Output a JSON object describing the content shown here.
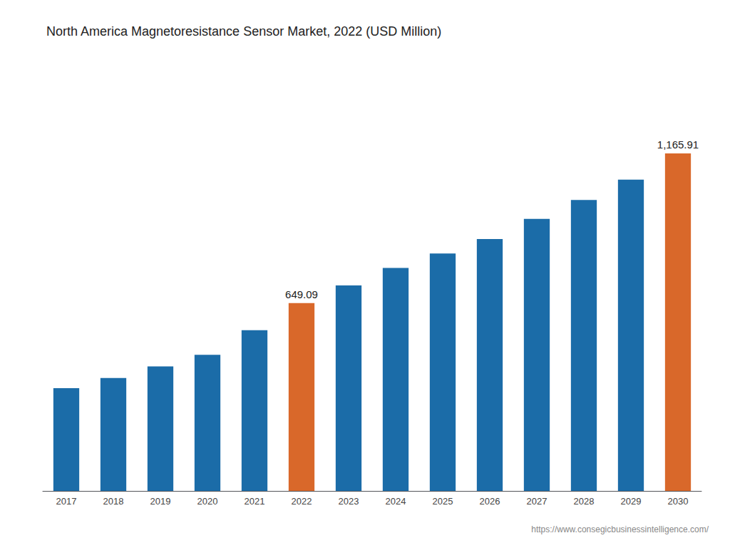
{
  "chart_data": {
    "type": "bar",
    "title": "North America Magnetoresistance Sensor Market, 2022 (USD Million)",
    "categories": [
      "2017",
      "2018",
      "2019",
      "2020",
      "2021",
      "2022",
      "2023",
      "2024",
      "2025",
      "2026",
      "2027",
      "2028",
      "2029",
      "2030"
    ],
    "values": [
      355,
      390,
      430,
      470,
      555,
      649.09,
      710,
      770,
      820,
      870,
      940,
      1005,
      1075,
      1165.91
    ],
    "value_labels": [
      null,
      null,
      null,
      null,
      null,
      "649.09",
      null,
      null,
      null,
      null,
      null,
      null,
      null,
      "1,165.91"
    ],
    "colors": [
      "#1B6CA8",
      "#1B6CA8",
      "#1B6CA8",
      "#1B6CA8",
      "#1B6CA8",
      "#D9682A",
      "#1B6CA8",
      "#1B6CA8",
      "#1B6CA8",
      "#1B6CA8",
      "#1B6CA8",
      "#1B6CA8",
      "#1B6CA8",
      "#D9682A"
    ],
    "ylim": [
      0,
      1400
    ],
    "data_labels": true,
    "tick_labels": "x",
    "grid": false,
    "annotation": "https://www.consegicbusinessintelligence.com/"
  }
}
